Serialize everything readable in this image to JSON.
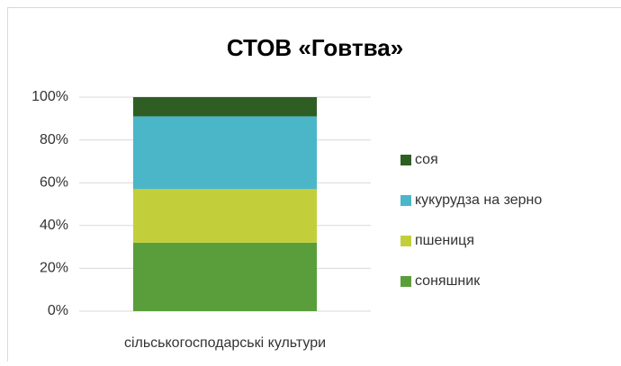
{
  "chart_data": {
    "type": "stacked_bar",
    "title": "СТОВ «Говтва»",
    "categories": [
      "сільськогосподарські культури"
    ],
    "series": [
      {
        "name": "соняшник",
        "color": "#5a9e3b",
        "values": [
          32
        ]
      },
      {
        "name": "пшениця",
        "color": "#c3cf3a",
        "values": [
          25
        ]
      },
      {
        "name": "кукурудза на зерно",
        "color": "#4bb6c8",
        "values": [
          34
        ]
      },
      {
        "name": "соя",
        "color": "#2e5e23",
        "values": [
          9
        ]
      }
    ],
    "ylim": [
      0,
      100
    ],
    "yticks": [
      {
        "value": 0,
        "label": "0%"
      },
      {
        "value": 20,
        "label": "20%"
      },
      {
        "value": 40,
        "label": "40%"
      },
      {
        "value": 60,
        "label": "60%"
      },
      {
        "value": 80,
        "label": "80%"
      },
      {
        "value": 100,
        "label": "100%"
      }
    ],
    "grid": true,
    "legend": "right"
  }
}
